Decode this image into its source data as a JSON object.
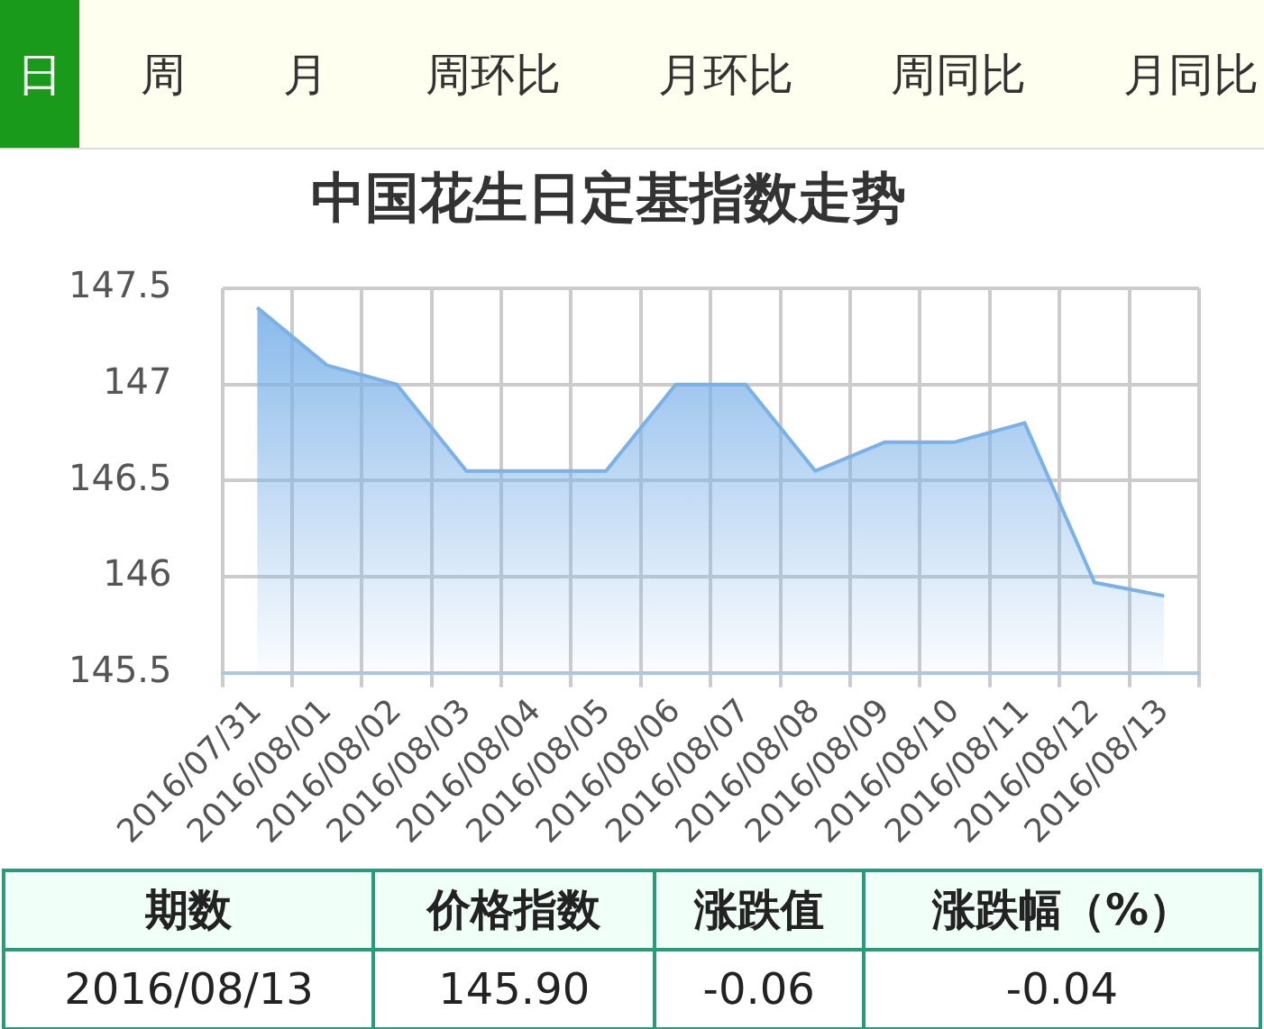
{
  "chart_data": [
    {
      "type": "other",
      "annotations": [
        "日",
        "周",
        "月",
        "周环比",
        "月环比",
        "周同比",
        "月同比"
      ]
    },
    {
      "type": "area",
      "title": "中国花生日定基指数走势",
      "categories": [
        "2016/07/31",
        "2016/08/01",
        "2016/08/02",
        "2016/08/03",
        "2016/08/04",
        "2016/08/05",
        "2016/08/06",
        "2016/08/07",
        "2016/08/08",
        "2016/08/09",
        "2016/08/10",
        "2016/08/11",
        "2016/08/12",
        "2016/08/13"
      ],
      "values": [
        147.4,
        147.1,
        147.0,
        146.55,
        146.55,
        146.55,
        147.0,
        147.0,
        146.55,
        146.7,
        146.7,
        146.8,
        145.97,
        145.9
      ],
      "color": "#7ab1e8",
      "ylim": [
        145.5,
        147.5
      ],
      "yticks": [
        145.5,
        146,
        146.5,
        147,
        147.5
      ],
      "grid": true,
      "marker": "none",
      "line_style": "solid"
    },
    {
      "type": "other",
      "categories": [
        "期数",
        "价格指数",
        "涨跌值",
        "涨跌幅（%）"
      ],
      "annotations": [
        "2016/08/13",
        "145.90",
        "-0.06",
        "-0.04"
      ]
    }
  ]
}
